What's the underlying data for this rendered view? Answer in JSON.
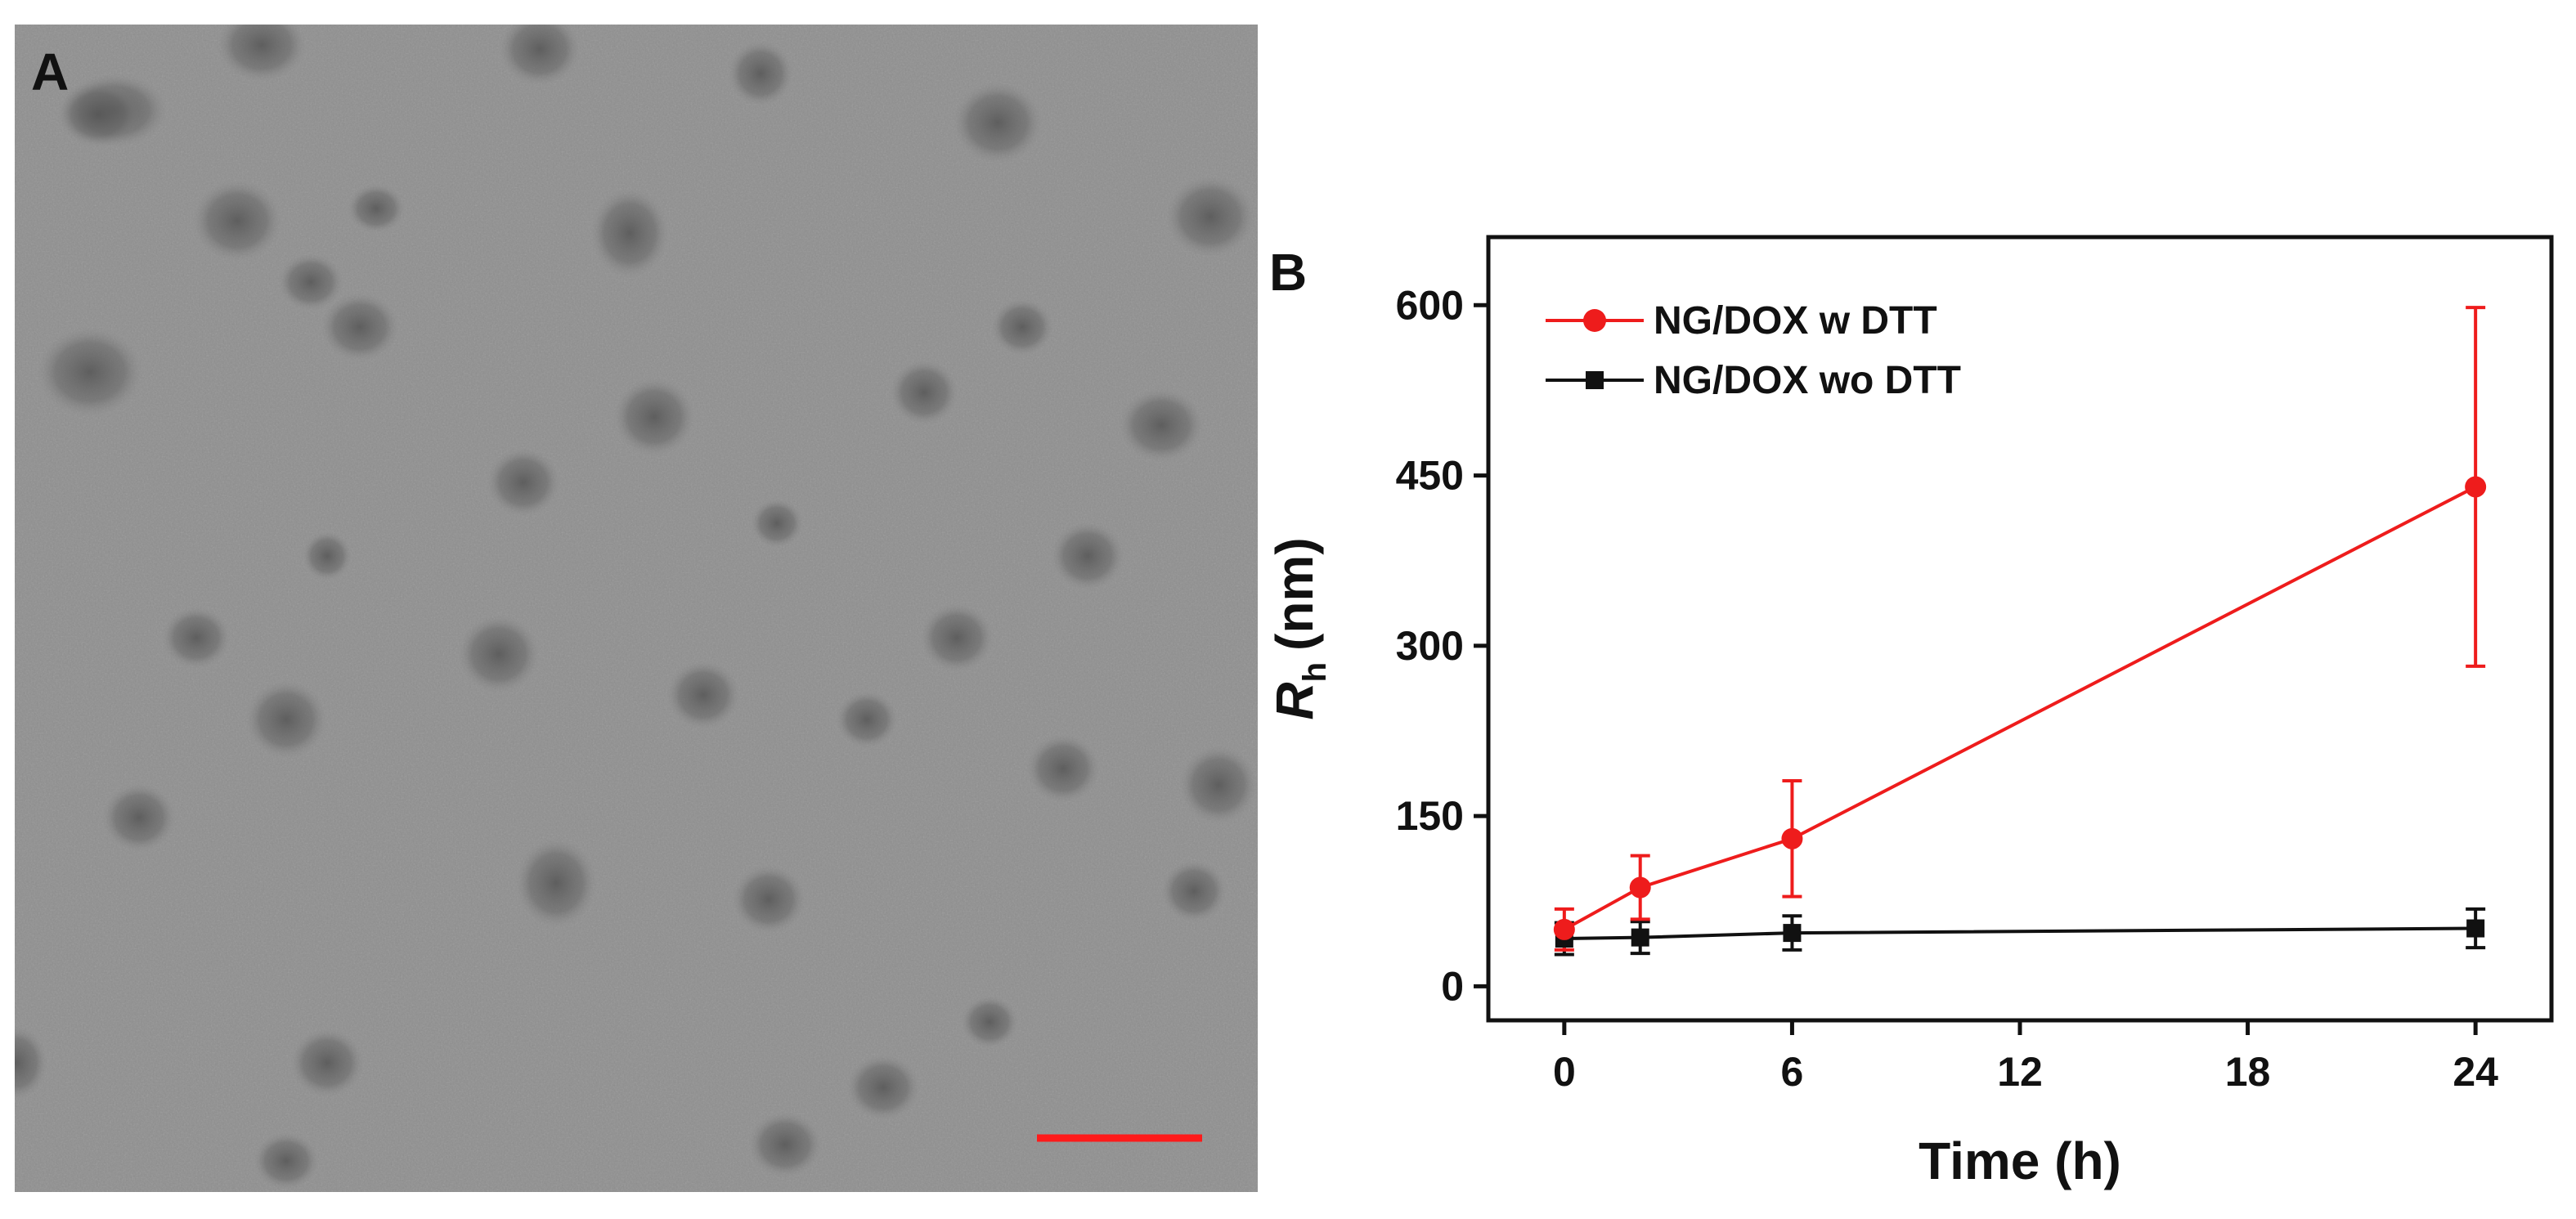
{
  "panel_a": {
    "label": "A",
    "scale_bar_color": "#ff1a1a"
  },
  "panel_b": {
    "label": "B"
  },
  "chart_data": {
    "type": "line",
    "xlabel": "Time (h)",
    "ylabel_main": "R",
    "ylabel_sub": "h",
    "ylabel_unit": "(nm)",
    "xlim": [
      -2,
      26
    ],
    "ylim": [
      -30,
      660
    ],
    "xticks": [
      0,
      6,
      12,
      18,
      24
    ],
    "yticks": [
      0,
      150,
      300,
      450,
      600
    ],
    "grid": false,
    "legend_position": "top-left",
    "x": [
      0,
      2,
      6,
      24
    ],
    "series": [
      {
        "name": "NG/DOX w DTT",
        "color": "#ee1c1c",
        "marker": "circle",
        "values": [
          50,
          87,
          130,
          440
        ],
        "error": [
          18,
          28,
          51,
          158
        ]
      },
      {
        "name": "NG/DOX wo DTT",
        "color": "#111111",
        "marker": "square",
        "values": [
          42,
          43,
          47,
          51
        ],
        "error": [
          14,
          14,
          15,
          17
        ]
      }
    ]
  }
}
